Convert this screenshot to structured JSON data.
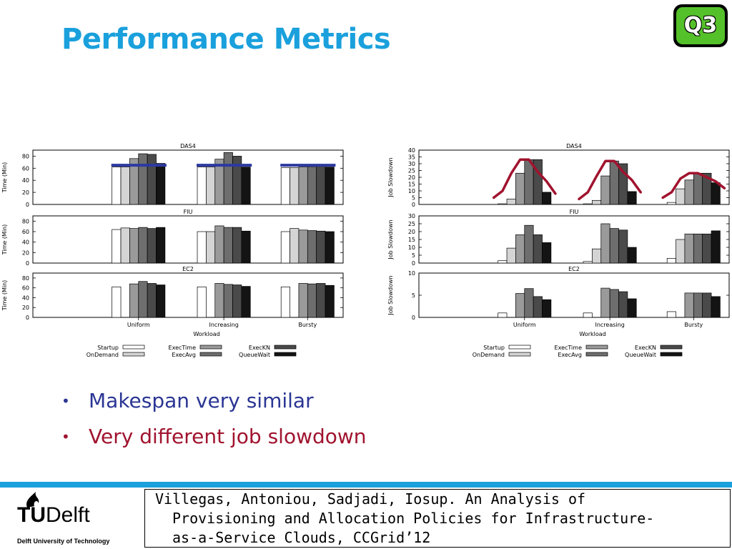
{
  "slide": {
    "title": "Performance Metrics",
    "badge": "Q3",
    "bullets": [
      "Makespan very similar",
      "Very different job slowdown"
    ],
    "citation": [
      "Villegas, Antoniou, Sadjadi, Iosup. An Analysis of",
      "Provisioning and Allocation Policies for Infrastructure-",
      "as-a-Service Clouds, CCGrid’12"
    ],
    "logo": {
      "text_tu": "TU",
      "text_delft": "Delft",
      "subtitle": "Delft University of Technology"
    },
    "colors": {
      "title": "#1aa0dc",
      "bullet1": "#2a3594",
      "bullet2": "#a0132e",
      "badge": "#55c12a"
    }
  },
  "chart_data": [
    {
      "type": "bar",
      "ylabel": "Time (Min)",
      "xlabel": "Workload",
      "categories": [
        "Uniform",
        "Increasing",
        "Bursty"
      ],
      "legend": [
        "Startup",
        "ExecTime",
        "ExecKN",
        "OnDemand",
        "ExecAvg",
        "QueueWait"
      ],
      "panels": [
        {
          "title": "DAS4",
          "ylim": [
            0,
            90
          ],
          "yticks": [
            0,
            20,
            40,
            60,
            80
          ],
          "values": [
            [
              62,
              62,
              76,
              84,
              83,
              68
            ],
            [
              62,
              62,
              75,
              86,
              80,
              62
            ],
            [
              61,
              61,
              62,
              62,
              62,
              62
            ]
          ],
          "makespan": [
            65,
            65,
            65
          ]
        },
        {
          "title": "FIU",
          "ylim": [
            0,
            90
          ],
          "yticks": [
            0,
            20,
            40,
            60,
            80
          ],
          "values": [
            [
              64,
              67,
              66,
              68,
              66,
              68
            ],
            [
              60,
              60,
              71,
              68,
              68,
              61
            ],
            [
              60,
              66,
              63,
              62,
              61,
              60
            ]
          ]
        },
        {
          "title": "EC2",
          "ylim": [
            0,
            90
          ],
          "yticks": [
            0,
            20,
            40,
            60,
            80
          ],
          "values": [
            [
              62,
              0,
              68,
              73,
              69,
              66
            ],
            [
              62,
              0,
              69,
              67,
              66,
              63
            ],
            [
              62,
              0,
              69,
              68,
              69,
              65
            ]
          ]
        }
      ]
    },
    {
      "type": "bar",
      "ylabel": "Job Slowdown",
      "xlabel": "Workload",
      "categories": [
        "Uniform",
        "Increasing",
        "Bursty"
      ],
      "legend": [
        "Startup",
        "ExecTime",
        "ExecKN",
        "OnDemand",
        "ExecAvg",
        "QueueWait"
      ],
      "panels": [
        {
          "title": "DAS4",
          "ylim": [
            0,
            40
          ],
          "yticks": [
            0,
            5,
            10,
            15,
            20,
            25,
            30,
            35,
            40
          ],
          "values": [
            [
              0.5,
              4,
              23,
              33,
              33,
              9
            ],
            [
              0.5,
              3,
              21,
              32,
              30,
              9.5
            ],
            [
              1.5,
              11.5,
              18,
              23,
              23,
              16
            ]
          ],
          "trend": [
            [
              5,
              10,
              23,
              33,
              33,
              24,
              17,
              8
            ],
            [
              4,
              9,
              21,
              32,
              32,
              24,
              18,
              9
            ],
            [
              5,
              9,
              19,
              23,
              23,
              20,
              17,
              12
            ]
          ]
        },
        {
          "title": "FIU",
          "ylim": [
            0,
            30
          ],
          "yticks": [
            0,
            5,
            10,
            15,
            20,
            25,
            30
          ],
          "values": [
            [
              1.5,
              9.5,
              18,
              24,
              18,
              13
            ],
            [
              1,
              9,
              25,
              22,
              21,
              10
            ],
            [
              3,
              15,
              18.5,
              18.5,
              18.5,
              20.5
            ]
          ]
        },
        {
          "title": "EC2",
          "ylim": [
            0,
            10
          ],
          "yticks": [
            0,
            5,
            10
          ],
          "values": [
            [
              1,
              0,
              5.4,
              6.5,
              4.7,
              4
            ],
            [
              1,
              0,
              6.6,
              6.3,
              5.8,
              4.2
            ],
            [
              1.3,
              0,
              5.5,
              5.5,
              5.5,
              4.7
            ]
          ]
        }
      ]
    }
  ]
}
